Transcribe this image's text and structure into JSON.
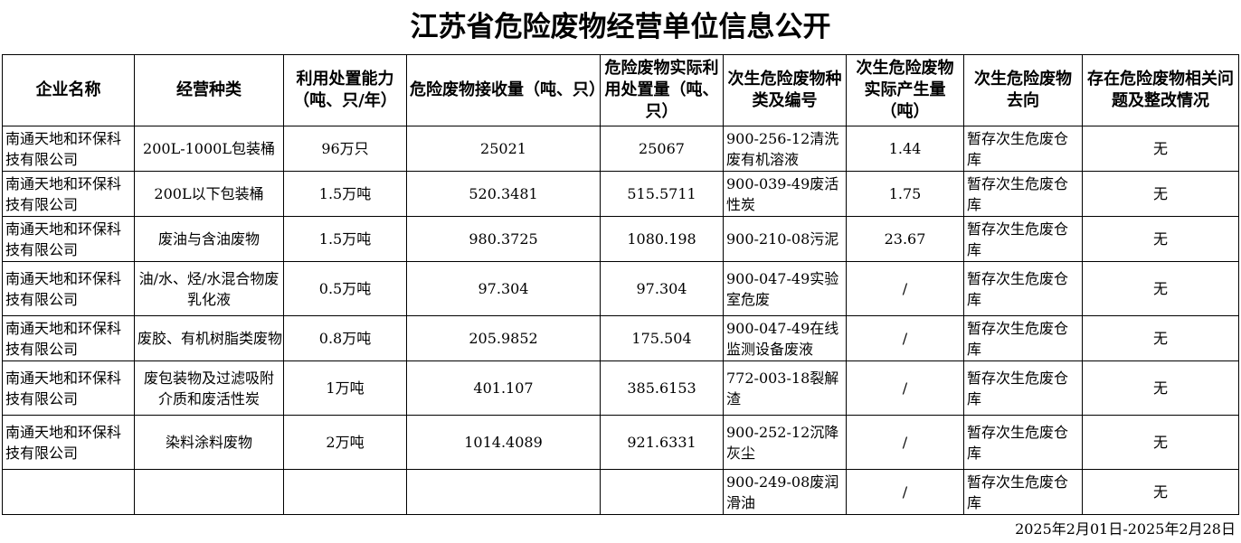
{
  "title": "江苏省危险废物经营单位信息公开",
  "headers": [
    "企业名称",
    "经营种类",
    "利用处置能力（吨、只/年）",
    "危险废物接收量（吨、只）",
    "危险废物实际利用处置量（吨、只）",
    "次生危险废物种类及编号",
    "次生危险废物实际产生量（吨）",
    "次生危险废物去向",
    "存在危险废物相关问题及整改情况"
  ],
  "rows": [
    {
      "company": "南通天地和环保科技有限公司",
      "type": "200L-1000L包装桶",
      "capacity": "96万只",
      "received": "25021",
      "disposed": "25067",
      "secondary": "900-256-12清洗废有机溶液",
      "produced": "1.44",
      "destination": "暂存次生危废仓库",
      "issues": "无"
    },
    {
      "company": "南通天地和环保科技有限公司",
      "type": "200L以下包装桶",
      "capacity": "1.5万吨",
      "received": "520.3481",
      "disposed": "515.5711",
      "secondary": "900-039-49废活性炭",
      "produced": "1.75",
      "destination": "暂存次生危废仓库",
      "issues": "无"
    },
    {
      "company": "南通天地和环保科技有限公司",
      "type": "废油与含油废物",
      "capacity": "1.5万吨",
      "received": "980.3725",
      "disposed": "1080.198",
      "secondary": "900-210-08污泥",
      "produced": "23.67",
      "destination": "暂存次生危废仓库",
      "issues": "无"
    },
    {
      "company": "南通天地和环保科技有限公司",
      "type": "油/水、烃/水混合物废乳化液",
      "capacity": "0.5万吨",
      "received": "97.304",
      "disposed": "97.304",
      "secondary": "900-047-49实验室危废",
      "produced": "/",
      "destination": "暂存次生危废仓库",
      "issues": "无"
    },
    {
      "company": "南通天地和环保科技有限公司",
      "type": "废胶、有机树脂类废物",
      "capacity": "0.8万吨",
      "received": "205.9852",
      "disposed": "175.504",
      "secondary": "900-047-49在线监测设备废液",
      "produced": "/",
      "destination": "暂存次生危废仓库",
      "issues": "无"
    },
    {
      "company": "南通天地和环保科技有限公司",
      "type": "废包装物及过滤吸附介质和废活性炭",
      "capacity": "1万吨",
      "received": "401.107",
      "disposed": "385.6153",
      "secondary": "772-003-18裂解渣",
      "produced": "/",
      "destination": "暂存次生危废仓库",
      "issues": "无"
    },
    {
      "company": "南通天地和环保科技有限公司",
      "type": "染料涂料废物",
      "capacity": "2万吨",
      "received": "1014.4089",
      "disposed": "921.6331",
      "secondary": "900-252-12沉降灰尘",
      "produced": "/",
      "destination": "暂存次生危废仓库",
      "issues": "无"
    },
    {
      "company": "",
      "type": "",
      "capacity": "",
      "received": "",
      "disposed": "",
      "secondary": "900-249-08废润滑油",
      "produced": "/",
      "destination": "暂存次生危废仓库",
      "issues": "无"
    }
  ],
  "footer": "2025年2月01日-2025年2月28日"
}
